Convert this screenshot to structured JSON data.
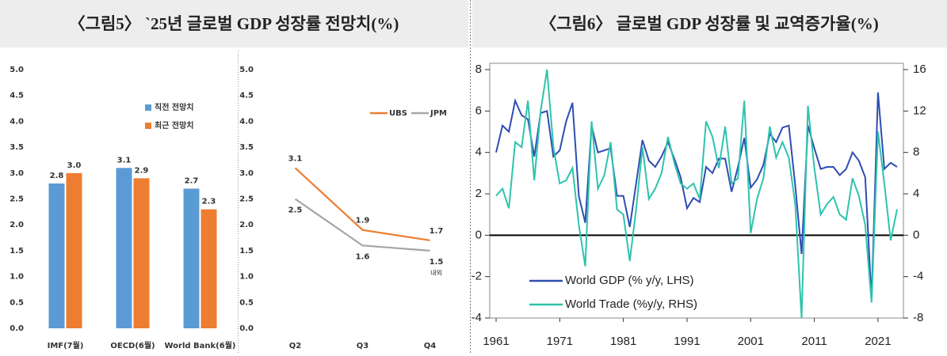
{
  "panels": [
    {
      "title": "〈그림5〉 `25년 글로벌 GDP 성장률 전망치(%)"
    },
    {
      "title": "〈그림6〉 글로벌 GDP 성장률 및 교역증가율(%)"
    }
  ],
  "chart_data": [
    {
      "type": "bar",
      "categories": [
        "IMF(7월)",
        "OECD(6월)",
        "World Bank(6월)"
      ],
      "series": [
        {
          "name": "직전 전망치",
          "color": "#5b9bd5",
          "values": [
            2.8,
            3.1,
            2.7
          ],
          "value_labels": [
            "2.8",
            "3.1",
            "2.7"
          ]
        },
        {
          "name": "최근 전망치",
          "color": "#ed7d31",
          "values": [
            3.0,
            2.9,
            2.3
          ],
          "value_labels": [
            "3.0",
            "2.9",
            "2.3"
          ]
        }
      ],
      "ylim": [
        0,
        5
      ],
      "yticks": [
        {
          "value": 0,
          "label": "0.0"
        },
        0.5,
        {
          "value": 1,
          "label": "1.0"
        },
        1.5,
        {
          "value": 2,
          "label": "2.0"
        },
        2.5,
        {
          "value": 3,
          "label": "3.0"
        },
        3.5,
        {
          "value": 4,
          "label": "4.0"
        },
        4.5,
        {
          "value": 5,
          "label": "5.0"
        }
      ]
    },
    {
      "type": "line",
      "categories": [
        "Q2",
        "Q3",
        "Q4"
      ],
      "series": [
        {
          "name": "UBS",
          "color": "#ed7d31",
          "values": [
            3.1,
            1.9,
            1.7
          ]
        },
        {
          "name": "JPM",
          "color": "#a5a5a5",
          "values": [
            2.5,
            1.6,
            1.5
          ]
        }
      ],
      "annotation": "내외",
      "ylim": [
        0,
        5
      ],
      "yticks": [
        {
          "value": 0,
          "label": "0.0"
        },
        0.5,
        {
          "value": 1,
          "label": "1.0"
        },
        1.5,
        {
          "value": 2,
          "label": "2.0"
        },
        2.5,
        {
          "value": 3,
          "label": "3.0"
        },
        3.5,
        {
          "value": 4,
          "label": "4.0"
        },
        4.5,
        {
          "value": 5,
          "label": "5.0"
        }
      ]
    },
    {
      "type": "line",
      "x": [
        1961,
        1962,
        1963,
        1964,
        1965,
        1966,
        1967,
        1968,
        1969,
        1970,
        1971,
        1972,
        1973,
        1974,
        1975,
        1976,
        1977,
        1978,
        1979,
        1980,
        1981,
        1982,
        1983,
        1984,
        1985,
        1986,
        1987,
        1988,
        1989,
        1990,
        1991,
        1992,
        1993,
        1994,
        1995,
        1996,
        1997,
        1998,
        1999,
        2000,
        2001,
        2002,
        2003,
        2004,
        2005,
        2006,
        2007,
        2008,
        2009,
        2010,
        2011,
        2012,
        2013,
        2014,
        2015,
        2016,
        2017,
        2018,
        2019,
        2020,
        2021,
        2022,
        2023,
        2024
      ],
      "series": [
        {
          "name": "World GDP (% y/y, LHS)",
          "color": "#2f4db3",
          "values": [
            4.0,
            5.3,
            5.0,
            6.5,
            5.8,
            5.6,
            3.8,
            5.9,
            6.0,
            3.8,
            4.1,
            5.5,
            6.4,
            1.9,
            0.6,
            5.3,
            4.0,
            4.1,
            4.2,
            1.9,
            1.9,
            0.4,
            2.5,
            4.6,
            3.6,
            3.3,
            3.8,
            4.5,
            3.7,
            2.8,
            1.3,
            1.8,
            1.6,
            3.3,
            3.0,
            3.7,
            3.7,
            2.1,
            3.3,
            4.7,
            2.3,
            2.7,
            3.4,
            4.9,
            4.5,
            5.2,
            5.3,
            2.4,
            -0.9,
            5.3,
            4.2,
            3.2,
            3.3,
            3.3,
            2.9,
            3.2,
            4.0,
            3.6,
            2.8,
            -3.1,
            6.9,
            3.2,
            3.5,
            3.3
          ]
        },
        {
          "name": "World Trade (%y/y, RHS)",
          "color": "#2ec3ad",
          "axis": "y2",
          "values": [
            3.8,
            4.5,
            2.6,
            9.0,
            8.5,
            13.0,
            5.3,
            12.0,
            16.0,
            8.5,
            5.0,
            5.3,
            6.5,
            1.0,
            -3.0,
            11.0,
            4.5,
            5.8,
            9.0,
            2.5,
            2.0,
            -2.5,
            2.5,
            8.5,
            3.5,
            4.5,
            6.0,
            9.5,
            7.0,
            5.0,
            4.5,
            5.0,
            3.5,
            11.0,
            9.5,
            6.5,
            10.5,
            5.0,
            5.5,
            13.0,
            0.2,
            3.5,
            5.5,
            10.5,
            7.5,
            9.0,
            7.5,
            3.0,
            -8,
            12.5,
            6.5,
            2.0,
            3.0,
            3.7,
            2.0,
            1.5,
            5.5,
            3.8,
            1.0,
            -6.5,
            10.0,
            5.0,
            -0.5,
            2.5
          ]
        }
      ],
      "xlim": [
        1960,
        2025
      ],
      "xticks": [
        1961,
        1971,
        1981,
        1991,
        2001,
        2011,
        2021
      ],
      "ylim": [
        -4,
        8
      ],
      "yticks": [
        -4,
        -2,
        0,
        2,
        4,
        6,
        8
      ],
      "y2lim": [
        -8,
        16
      ],
      "y2ticks": [
        -8,
        -4,
        0,
        4,
        8,
        12,
        16
      ]
    }
  ]
}
